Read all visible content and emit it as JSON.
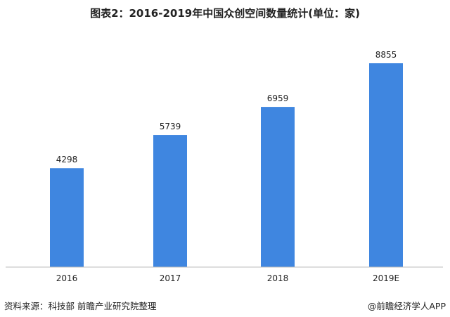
{
  "title": "图表2：2016-2019年中国众创空间数量统计(单位：家)",
  "source": "资料来源：科技部 前瞻产业研究院整理",
  "credit": "@前瞻经济学人APP",
  "colors": {
    "bar": "#3f86e0",
    "axis": "#bdbdbd"
  },
  "chart_data": {
    "type": "bar",
    "title": "图表2：2016-2019年中国众创空间数量统计(单位：家)",
    "categories": [
      "2016",
      "2017",
      "2018",
      "2019E"
    ],
    "values": [
      4298,
      5739,
      6959,
      8855
    ],
    "xlabel": "",
    "ylabel": "",
    "ylim": [
      0,
      9000
    ],
    "grid": false,
    "legend": "none"
  }
}
